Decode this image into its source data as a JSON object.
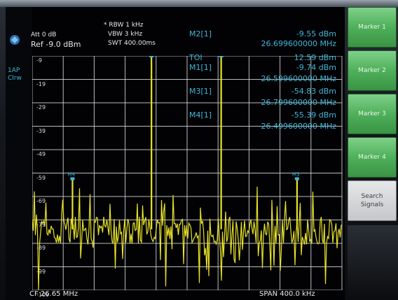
{
  "header": {
    "att": "Att  0 dB",
    "ref": "Ref -9.0 dBm",
    "rbw": "* RBW  1 kHz",
    "vbw": "VBW  3 kHz",
    "swt": "SWT  400.00ms"
  },
  "side_label": [
    "1AP",
    "Clrw"
  ],
  "results": {
    "m2_label": "M2[1]",
    "m2_level": "-9.55 dBm",
    "m2_freq": "26.699600000 MHz",
    "toi_label": "TOI",
    "toi_value": "12.59 dBm",
    "m1_label": "M1[1]",
    "m1_level": "-9.74 dBm",
    "m1_freq": "26.599600000 MHz",
    "m3_label": "M3[1]",
    "m3_level": "-54.83 dBm",
    "m3_freq": "26.799600000 MHz",
    "m4_label": "M4[1]",
    "m4_level": "-55.39 dBm",
    "m4_freq": "26.499600000 MHz"
  },
  "y_axis": [
    "-9",
    "-19",
    "-29",
    "-39",
    "-49",
    "-59",
    "-69",
    "-79",
    "-89",
    "-99",
    "-109"
  ],
  "markers_on_plot": [
    "M4",
    "M1",
    "M2",
    "M3"
  ],
  "footer": {
    "cf": "CF 26.65 MHz",
    "span": "SPAN 400.0 kHz"
  },
  "softkeys": {
    "marker1": "Marker 1",
    "marker2": "Marker 2",
    "marker3": "Marker 3",
    "marker4": "Marker 4",
    "search_line1": "Search",
    "search_line2": "Signals"
  },
  "colors": {
    "trace": "#e8e22a",
    "marker": "#3fb7d9",
    "softkey_green": "#4fb05a",
    "grid": "#d9dcdf"
  }
}
